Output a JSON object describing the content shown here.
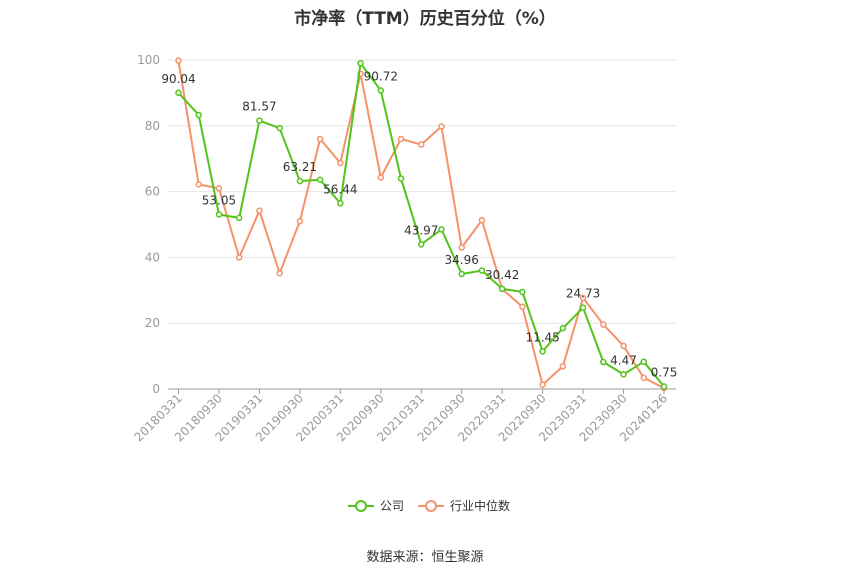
{
  "chart_data": {
    "type": "line",
    "title": "市净率（TTM）历史百分位（%）",
    "xlabel": "",
    "ylabel": "",
    "ylim": [
      0,
      100
    ],
    "yticks": [
      0,
      20,
      40,
      60,
      80,
      100
    ],
    "grid": true,
    "legend_position": "bottom-center",
    "x": [
      "20180331",
      "20180630",
      "20180930",
      "20181231",
      "20190331",
      "20190630",
      "20190930",
      "20191231",
      "20200331",
      "20200630",
      "20200930",
      "20201231",
      "20210331",
      "20210630",
      "20210930",
      "20211231",
      "20220331",
      "20220630",
      "20220930",
      "20221231",
      "20230331",
      "20230630",
      "20230930",
      "20231231",
      "20240126"
    ],
    "xtick_labels": [
      "20180331",
      "20180930",
      "20190331",
      "20190930",
      "20200331",
      "20200930",
      "20210331",
      "20210930",
      "20220331",
      "20220930",
      "20230331",
      "20230930",
      "20240126"
    ],
    "series": [
      {
        "name": "公司",
        "color": "#52c41a",
        "values": [
          90.04,
          83.3,
          53.05,
          52.0,
          81.57,
          79.3,
          63.21,
          63.6,
          56.44,
          99.0,
          90.72,
          64.0,
          43.97,
          48.5,
          34.96,
          36.0,
          30.42,
          29.5,
          11.45,
          18.5,
          24.73,
          8.2,
          4.47,
          8.3,
          0.75
        ],
        "labels": {
          "0": "90.04",
          "2": "53.05",
          "4": "81.57",
          "6": "63.21",
          "8": "56.44",
          "10": "90.72",
          "12": "43.97",
          "14": "34.96",
          "16": "30.42",
          "18": "11.45",
          "20": "24.73",
          "22": "4.47",
          "24": "0.75"
        }
      },
      {
        "name": "行业中位数",
        "color": "#f4926a",
        "values": [
          99.8,
          62.2,
          61.0,
          40.0,
          54.2,
          35.2,
          51.0,
          76.0,
          68.7,
          95.8,
          64.3,
          76.0,
          74.3,
          79.8,
          43.0,
          51.3,
          30.4,
          25.0,
          1.3,
          6.9,
          27.7,
          19.6,
          13.1,
          3.4,
          0.3
        ]
      }
    ]
  },
  "source_text": "数据来源：恒生聚源"
}
